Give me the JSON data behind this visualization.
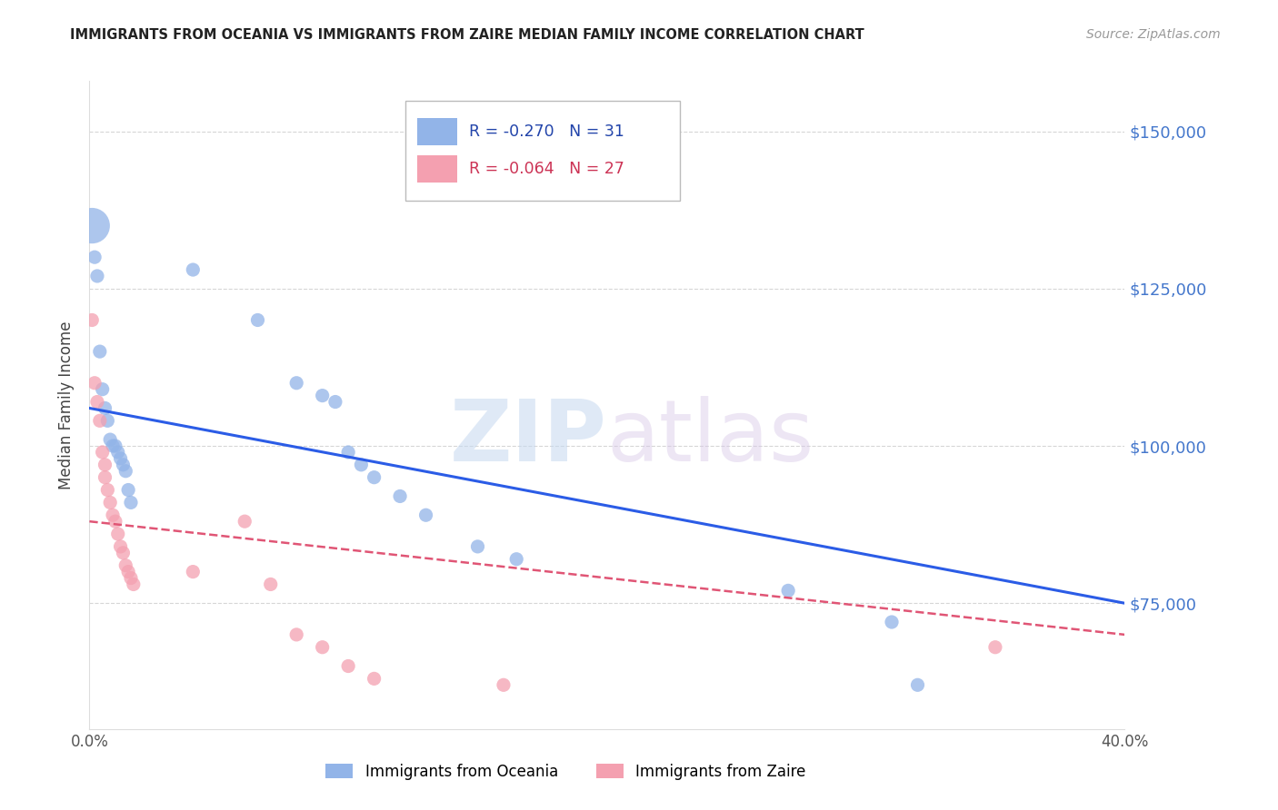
{
  "title": "IMMIGRANTS FROM OCEANIA VS IMMIGRANTS FROM ZAIRE MEDIAN FAMILY INCOME CORRELATION CHART",
  "source": "Source: ZipAtlas.com",
  "ylabel": "Median Family Income",
  "xlim": [
    0.0,
    0.4
  ],
  "ylim": [
    55000,
    158000
  ],
  "yticks": [
    75000,
    100000,
    125000,
    150000
  ],
  "ytick_labels": [
    "$75,000",
    "$100,000",
    "$125,000",
    "$150,000"
  ],
  "blue_label": "Immigrants from Oceania",
  "pink_label": "Immigrants from Zaire",
  "blue_R": -0.27,
  "blue_N": 31,
  "pink_R": -0.064,
  "pink_N": 27,
  "blue_color": "#92b4e8",
  "pink_color": "#f4a0b0",
  "blue_line_color": "#2b5ce6",
  "pink_line_color": "#e05575",
  "watermark": "ZIPatlas",
  "blue_line_x0": 0.0,
  "blue_line_y0": 106000,
  "blue_line_x1": 0.4,
  "blue_line_y1": 75000,
  "pink_line_x0": 0.0,
  "pink_line_y0": 88000,
  "pink_line_x1": 0.4,
  "pink_line_y1": 70000,
  "blue_x": [
    0.001,
    0.002,
    0.003,
    0.004,
    0.005,
    0.006,
    0.007,
    0.008,
    0.009,
    0.01,
    0.011,
    0.012,
    0.013,
    0.014,
    0.015,
    0.016,
    0.04,
    0.065,
    0.08,
    0.09,
    0.095,
    0.1,
    0.105,
    0.11,
    0.12,
    0.13,
    0.15,
    0.165,
    0.27,
    0.31,
    0.32
  ],
  "blue_y": [
    135000,
    130000,
    127000,
    115000,
    109000,
    106000,
    104000,
    101000,
    100000,
    100000,
    99000,
    98000,
    97000,
    96000,
    93000,
    91000,
    128000,
    120000,
    110000,
    108000,
    107000,
    99000,
    97000,
    95000,
    92000,
    89000,
    84000,
    82000,
    77000,
    72000,
    62000
  ],
  "blue_size": [
    800,
    120,
    120,
    120,
    120,
    120,
    120,
    120,
    120,
    120,
    120,
    120,
    120,
    120,
    120,
    120,
    120,
    120,
    120,
    120,
    120,
    120,
    120,
    120,
    120,
    120,
    120,
    120,
    120,
    120,
    120
  ],
  "pink_x": [
    0.001,
    0.002,
    0.003,
    0.004,
    0.005,
    0.006,
    0.006,
    0.007,
    0.008,
    0.009,
    0.01,
    0.011,
    0.012,
    0.013,
    0.014,
    0.015,
    0.016,
    0.017,
    0.04,
    0.06,
    0.07,
    0.08,
    0.09,
    0.1,
    0.11,
    0.16,
    0.35
  ],
  "pink_y": [
    120000,
    110000,
    107000,
    104000,
    99000,
    97000,
    95000,
    93000,
    91000,
    89000,
    88000,
    86000,
    84000,
    83000,
    81000,
    80000,
    79000,
    78000,
    80000,
    88000,
    78000,
    70000,
    68000,
    65000,
    63000,
    62000,
    68000
  ]
}
